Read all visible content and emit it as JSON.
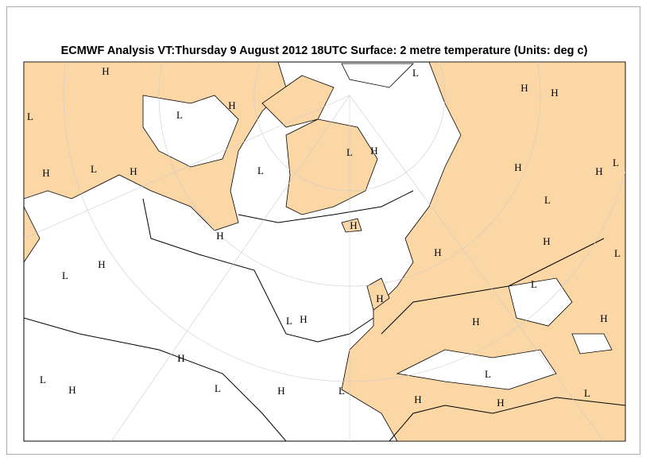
{
  "header": {
    "title": "ECMWF  Analysis VT:Thursday 9 August 2012 18UTC Surface: 2 metre temperature (Units: deg c)"
  },
  "markers": [
    "H",
    "L",
    "H",
    "L",
    "H",
    "L",
    "H",
    "L",
    "H",
    "H",
    "L",
    "L",
    "H",
    "H",
    "L",
    "H",
    "L",
    "H",
    "L",
    "H",
    "H",
    "L",
    "L",
    "H",
    "H",
    "H",
    "L",
    "L",
    "H",
    "H",
    "H",
    "L",
    "H",
    "L",
    "H",
    "H",
    "L",
    "H",
    "H",
    "L"
  ]
}
